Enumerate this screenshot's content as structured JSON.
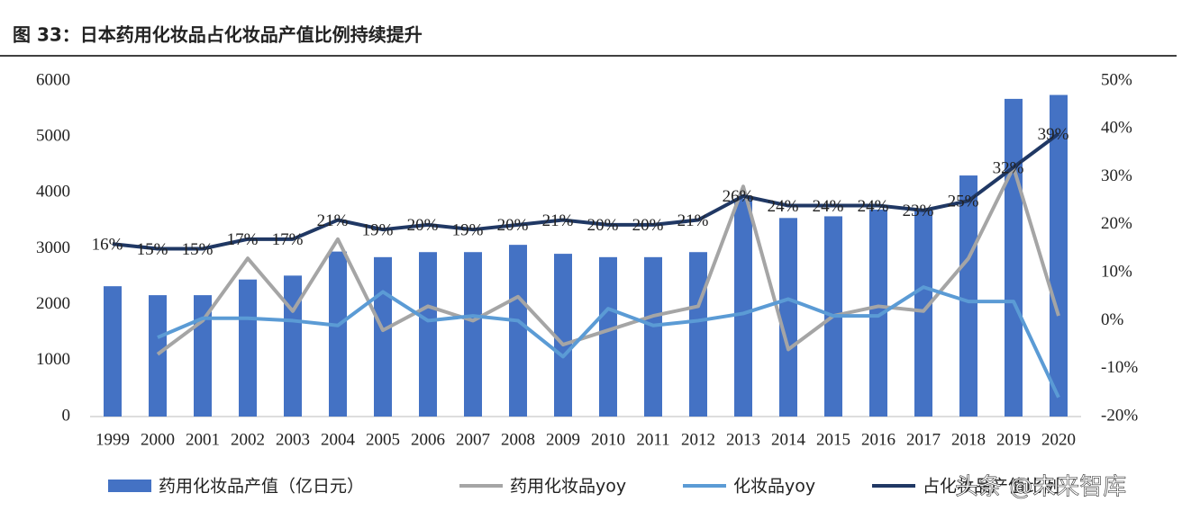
{
  "chart_data": {
    "type": "bar_line",
    "title": "图 33：日本药用化妆品占化妆品产值比例持续提升",
    "categories": [
      "1999",
      "2000",
      "2001",
      "2002",
      "2003",
      "2004",
      "2005",
      "2006",
      "2007",
      "2008",
      "2009",
      "2010",
      "2011",
      "2012",
      "2013",
      "2014",
      "2015",
      "2016",
      "2017",
      "2018",
      "2019",
      "2020"
    ],
    "ylim": [
      0,
      6000
    ],
    "yticks": [
      0,
      1000,
      2000,
      3000,
      4000,
      5000,
      6000
    ],
    "y2lim": [
      -20,
      50
    ],
    "y2ticks": [
      {
        "value": -20,
        "label": "-20%"
      },
      {
        "value": -10,
        "label": "-10%"
      },
      {
        "value": 0,
        "label": "0%"
      },
      {
        "value": 10,
        "label": "10%"
      },
      {
        "value": 20,
        "label": "20%"
      },
      {
        "value": 30,
        "label": "30%"
      },
      {
        "value": 40,
        "label": "40%"
      },
      {
        "value": 50,
        "label": "50%"
      }
    ],
    "series": [
      {
        "name": "药用化妆品产值（亿日元）",
        "type": "bar",
        "color": "#4472c4",
        "values": [
          2330,
          2170,
          2170,
          2450,
          2520,
          2950,
          2850,
          2940,
          2940,
          3070,
          2910,
          2850,
          2850,
          2940,
          3900,
          3550,
          3580,
          3700,
          3720,
          4310,
          5680,
          5750
        ]
      },
      {
        "name": "药用化妆品yoy",
        "type": "line",
        "axis": "y2",
        "color": "#a5a5a5",
        "values": [
          null,
          -7,
          0,
          13,
          2,
          17,
          -2,
          3,
          0,
          5,
          -5,
          -2,
          1,
          3,
          28,
          -6,
          1,
          3,
          2,
          13,
          32,
          1
        ]
      },
      {
        "name": "化妆品yoy",
        "type": "line",
        "axis": "y2",
        "color": "#5b9bd5",
        "values": [
          null,
          -3.5,
          0.5,
          0.5,
          0,
          -1,
          6,
          0,
          1,
          0,
          -7.5,
          2.5,
          -1,
          0,
          1.5,
          4.5,
          1,
          1,
          7,
          4,
          4,
          -16
        ]
      },
      {
        "name": "占化妆品产值比例",
        "type": "line",
        "axis": "y2",
        "color": "#203864",
        "values": [
          16,
          15,
          15,
          17,
          17,
          21,
          19,
          20,
          19,
          20,
          21,
          20,
          20,
          21,
          26,
          24,
          24,
          24,
          23,
          25,
          32,
          39
        ],
        "value_labels": [
          "16%",
          "15%",
          "15%",
          "17%",
          "17%",
          "21%",
          "19%",
          "20%",
          "19%",
          "20%",
          "21%",
          "20%",
          "20%",
          "21%",
          "26%",
          "24%",
          "24%",
          "24%",
          "23%",
          "25%",
          "32%",
          "39%"
        ]
      }
    ]
  },
  "watermark": "头条 @未来智库"
}
